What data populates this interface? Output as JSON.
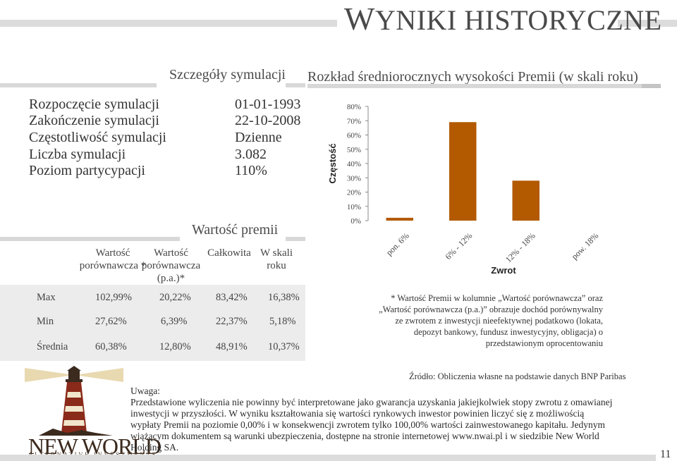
{
  "page": {
    "title_first": "W",
    "title_rest": "YNIKI HISTORYCZNE",
    "number": "11"
  },
  "details": {
    "heading": "Szczegóły symulacji",
    "rows": [
      {
        "label": "Rozpoczęcie symulacji",
        "value": "01-01-1993"
      },
      {
        "label": "Zakończenie symulacji",
        "value": "22-10-2008"
      },
      {
        "label": "Częstotliwość symulacji",
        "value": "Dzienne"
      },
      {
        "label": "Liczba symulacji",
        "value": "3.082"
      },
      {
        "label": "Poziom partycypacji",
        "value": "110%"
      }
    ]
  },
  "premium": {
    "heading": "Wartość premii",
    "col1": "Wartość porównawcza *",
    "col2": "Wartość porównawcza (p.a.)*",
    "col3": "Całkowita",
    "col4": "W skali roku",
    "rows": [
      {
        "label": "Max",
        "c1": "102,99%",
        "c2": "20,22%",
        "c3": "83,42%",
        "c4": "16,38%"
      },
      {
        "label": "Min",
        "c1": "27,62%",
        "c2": "6,39%",
        "c3": "22,37%",
        "c4": "5,18%"
      },
      {
        "label": "Średnia",
        "c1": "60,38%",
        "c2": "12,80%",
        "c3": "48,91%",
        "c4": "10,37%"
      }
    ]
  },
  "chart_data": {
    "type": "bar",
    "title": "Rozkład średniorocznych wysokości Premii (w skali roku)",
    "xlabel": "Zwrot",
    "ylabel": "Częstość",
    "categories": [
      "pon. 6%",
      "6% - 12%",
      "12% - 18%",
      "pow. 18%"
    ],
    "values": [
      2,
      69,
      28,
      0
    ],
    "ylim": [
      0,
      80
    ],
    "yticks": [
      "0%",
      "10%",
      "20%",
      "30%",
      "40%",
      "50%",
      "60%",
      "70%",
      "80%"
    ],
    "bar_color": "#b35a00",
    "grid": false
  },
  "footnote": "* Wartość Premii w kolumnie „Wartość porównawcza” oraz „Wartość porównawcza (p.a.)” obrazuje dochód porównywalny ze zwrotem z inwestycji nieefektywnej podatkowo (lokata, depozyt bankowy, fundusz inwestycyjny, obligacja) o przedstawionym oprocentowaniu",
  "source": "Źródło: Obliczenia własne na podstawie danych BNP Paribas",
  "disclaimer": {
    "heading": "Uwaga:",
    "text": "Przedstawione wyliczenia nie powinny być interpretowane jako gwarancja uzyskania jakiejkolwiek stopy zwrotu z omawianej inwestycji w przyszłości. W wyniku kształtowania się wartości rynkowych inwestor powinien liczyć się z możliwością wypłaty Premii na poziomie 0,00% i w konsekwencji zwrotem tylko 100,00% wartości zainwestowanego kapitału. Jedynym wiążącym dokumentem są warunki ubezpieczenia, dostępne na stronie internetowej www.nwai.pl i w siedzibie New World Holding SA."
  },
  "logo": {
    "name": "NEW WORLD",
    "tagline": "ALTERNATIVE INVESTMENTS",
    "icon": "lighthouse-icon"
  }
}
